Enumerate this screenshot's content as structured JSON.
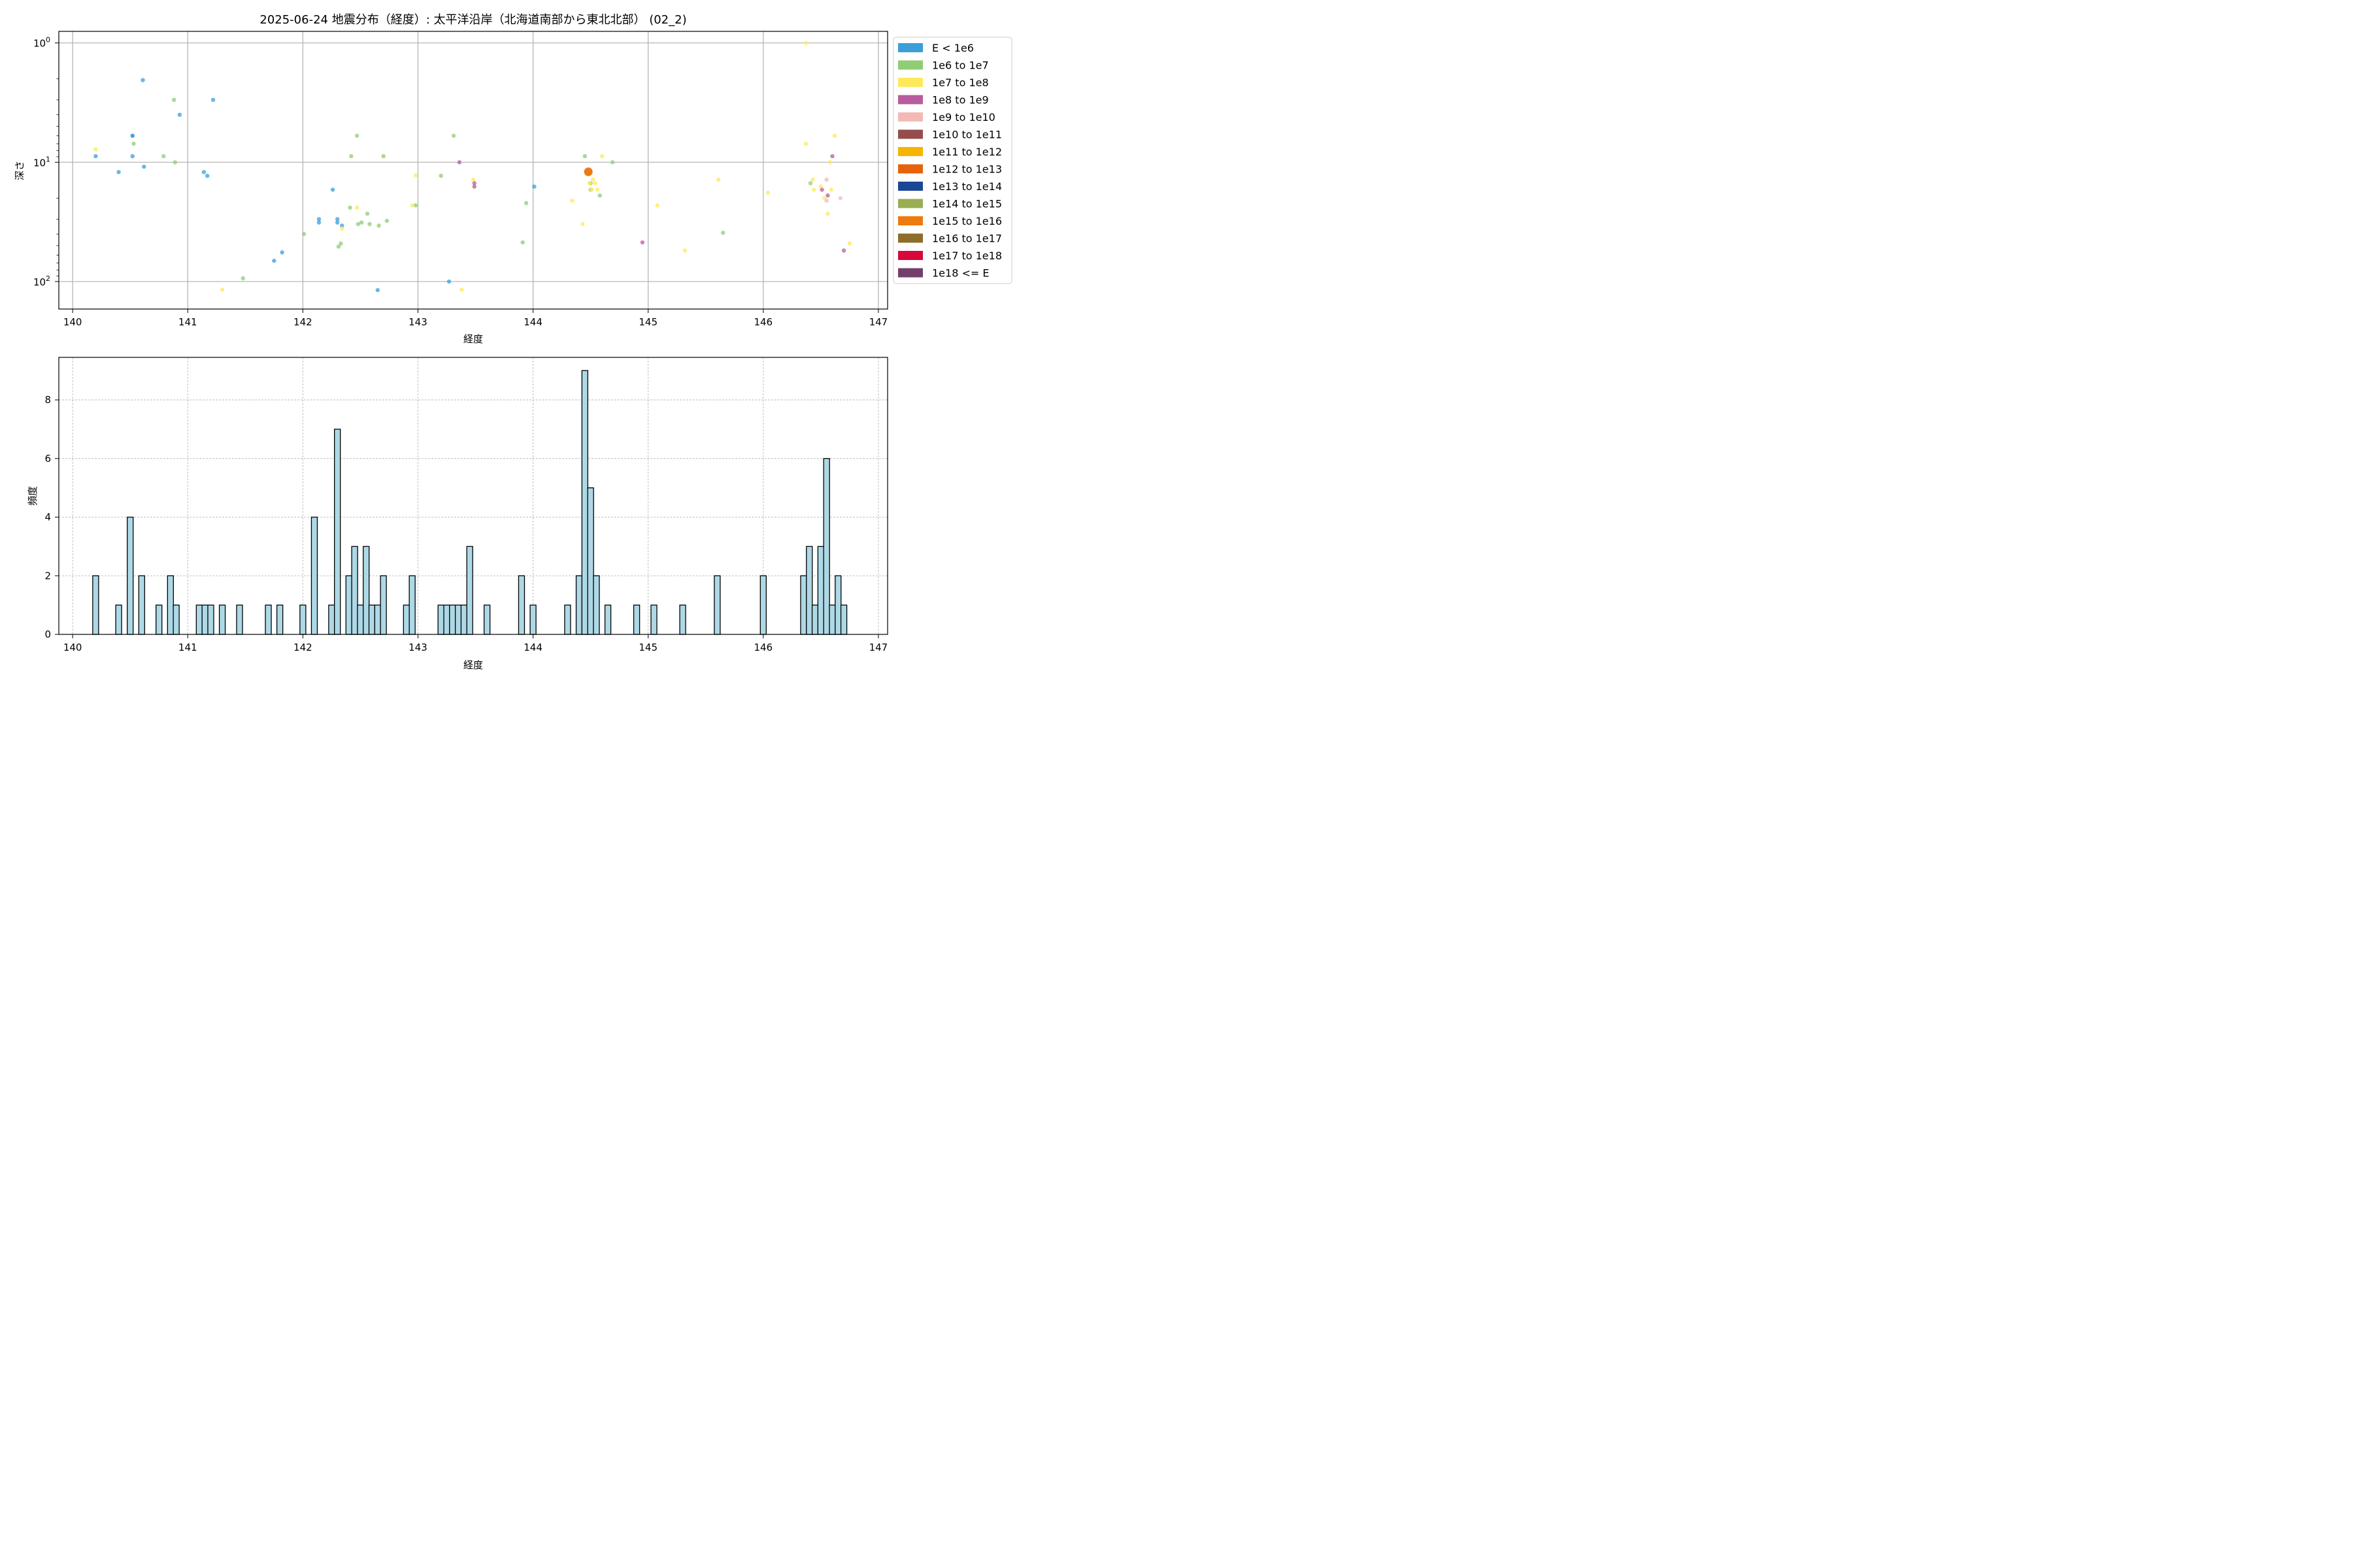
{
  "title": "2025-06-24 地震分布（経度）: 太平洋沿岸（北海道南部から東北北部） (02_2)",
  "chart_data": [
    {
      "type": "scatter",
      "title": "2025-06-24 地震分布（経度）: 太平洋沿岸（北海道南部から東北北部） (02_2)",
      "xlabel": "経度",
      "ylabel": "深さ",
      "xlim": [
        139.88,
        147.08
      ],
      "ylim": [
        170,
        0.8
      ],
      "yscale": "log",
      "y_inverted": true,
      "grid": true,
      "legend_position": "outside-right",
      "x_ticks": [
        140,
        141,
        142,
        143,
        144,
        145,
        146,
        147
      ],
      "y_ticks": [
        {
          "value": 1,
          "base": "10",
          "exp": "0"
        },
        {
          "value": 10,
          "base": "10",
          "exp": "1"
        },
        {
          "value": 100,
          "base": "10",
          "exp": "2"
        }
      ],
      "legend": [
        {
          "label": "E < 1e6",
          "color": "#3a9fd8"
        },
        {
          "label": "1e6 to 1e7",
          "color": "#90cc74"
        },
        {
          "label": "1e7 to 1e8",
          "color": "#fde95a"
        },
        {
          "label": "1e8 to 1e9",
          "color": "#b85c9e"
        },
        {
          "label": "1e9 to 1e10",
          "color": "#f4b9b5"
        },
        {
          "label": "1e10 to 1e11",
          "color": "#944d4a"
        },
        {
          "label": "1e11 to 1e12",
          "color": "#f6b400"
        },
        {
          "label": "1e12 to 1e13",
          "color": "#e8620b"
        },
        {
          "label": "1e13 to 1e14",
          "color": "#1b4896"
        },
        {
          "label": "1e14 to 1e15",
          "color": "#99ad52"
        },
        {
          "label": "1e15 to 1e16",
          "color": "#ef7a0e"
        },
        {
          "label": "1e16 to 1e17",
          "color": "#8e6c2a"
        },
        {
          "label": "1e17 to 1e18",
          "color": "#d9083a"
        },
        {
          "label": "1e18 <= E",
          "color": "#733f6a"
        }
      ],
      "series": [
        {
          "class": "E < 1e6",
          "color": "#3a9fd8",
          "points": [
            [
              140.2,
              8.9
            ],
            [
              140.4,
              12.1
            ],
            [
              140.52,
              6.0
            ],
            [
              140.52,
              6.0
            ],
            [
              140.52,
              8.9
            ],
            [
              140.61,
              2.05
            ],
            [
              140.62,
              10.9
            ],
            [
              140.93,
              4.0
            ],
            [
              141.14,
              12.1
            ],
            [
              141.17,
              13.0
            ],
            [
              141.22,
              3.0
            ],
            [
              141.75,
              67
            ],
            [
              141.82,
              57
            ],
            [
              142.14,
              30
            ],
            [
              142.14,
              32
            ],
            [
              142.26,
              17
            ],
            [
              142.3,
              32
            ],
            [
              142.3,
              30
            ],
            [
              142.34,
              34
            ],
            [
              142.65,
              118
            ],
            [
              143.27,
              100
            ],
            [
              144.01,
              16
            ]
          ]
        },
        {
          "class": "1e6 to 1e7",
          "color": "#90cc74",
          "points": [
            [
              140.79,
              8.9
            ],
            [
              140.88,
              3.0
            ],
            [
              140.89,
              10.0
            ],
            [
              140.53,
              7.0
            ],
            [
              141.48,
              94
            ],
            [
              142.01,
              40
            ],
            [
              142.31,
              51
            ],
            [
              142.33,
              48
            ],
            [
              142.41,
              24
            ],
            [
              142.42,
              8.9
            ],
            [
              142.47,
              6.0
            ],
            [
              142.48,
              33
            ],
            [
              142.51,
              32
            ],
            [
              142.56,
              27
            ],
            [
              142.58,
              33
            ],
            [
              142.66,
              34
            ],
            [
              142.7,
              8.9
            ],
            [
              142.73,
              31
            ],
            [
              142.98,
              23
            ],
            [
              143.2,
              13.0
            ],
            [
              143.31,
              6.0
            ],
            [
              143.91,
              47
            ],
            [
              143.94,
              22
            ],
            [
              144.45,
              8.9
            ],
            [
              144.5,
              15
            ],
            [
              144.5,
              17
            ],
            [
              144.58,
              19
            ],
            [
              144.69,
              10.0
            ],
            [
              145.65,
              39
            ],
            [
              146.41,
              15
            ]
          ]
        },
        {
          "class": "1e7 to 1e8",
          "color": "#fde95a",
          "points": [
            [
              140.2,
              7.8
            ],
            [
              141.3,
              117
            ],
            [
              142.34,
              36
            ],
            [
              142.47,
              24
            ],
            [
              142.95,
              23
            ],
            [
              142.98,
              12.9
            ],
            [
              143.38,
              117
            ],
            [
              143.48,
              14
            ],
            [
              144.34,
              21
            ],
            [
              144.43,
              33
            ],
            [
              144.49,
              12.1
            ],
            [
              144.49,
              15
            ],
            [
              144.52,
              14
            ],
            [
              144.51,
              17
            ],
            [
              144.54,
              15
            ],
            [
              144.56,
              17
            ],
            [
              144.6,
              8.9
            ],
            [
              145.08,
              23
            ],
            [
              145.32,
              55
            ],
            [
              145.61,
              14
            ],
            [
              146.04,
              18
            ],
            [
              146.37,
              1.0
            ],
            [
              146.37,
              7.0
            ],
            [
              146.43,
              14
            ],
            [
              146.44,
              17
            ],
            [
              146.5,
              16
            ],
            [
              146.53,
              20
            ],
            [
              146.56,
              27
            ],
            [
              146.58,
              10.0
            ],
            [
              146.59,
              17
            ],
            [
              146.62,
              6.0
            ],
            [
              146.75,
              48
            ]
          ]
        },
        {
          "class": "1e8 to 1e9",
          "color": "#b85c9e",
          "points": [
            [
              143.36,
              10.0
            ],
            [
              143.49,
              15
            ],
            [
              143.49,
              16
            ],
            [
              144.95,
              47
            ],
            [
              146.51,
              17
            ],
            [
              146.56,
              19
            ],
            [
              146.6,
              8.9
            ],
            [
              146.7,
              55
            ]
          ]
        },
        {
          "class": "1e9 to 1e10",
          "color": "#f4b9b5",
          "points": [
            [
              146.55,
              14
            ],
            [
              146.55,
              21
            ],
            [
              146.67,
              20
            ]
          ]
        },
        {
          "class": "1e11 to 1e12",
          "color": "#f6b400",
          "points": [
            [
              144.48,
              12.1
            ]
          ]
        },
        {
          "class": "1e12 to 1e13",
          "color": "#e8620b",
          "points": [
            [
              144.48,
              12.0
            ]
          ]
        }
      ]
    },
    {
      "type": "bar",
      "xlabel": "経度",
      "ylabel": "頻度",
      "xlim": [
        139.88,
        147.08
      ],
      "ylim": [
        0,
        9.45
      ],
      "grid": true,
      "x_ticks": [
        140,
        141,
        142,
        143,
        144,
        145,
        146,
        147
      ],
      "y_ticks": [
        0,
        2,
        4,
        6,
        8
      ],
      "bar_color": "#add8e6",
      "edge_color": "#000000",
      "bin_width": 0.0512,
      "bins": [
        [
          140.2,
          2
        ],
        [
          140.4,
          1
        ],
        [
          140.5,
          4
        ],
        [
          140.6,
          2
        ],
        [
          140.75,
          1
        ],
        [
          140.85,
          2
        ],
        [
          140.9,
          1
        ],
        [
          141.1,
          1
        ],
        [
          141.15,
          1
        ],
        [
          141.2,
          1
        ],
        [
          141.3,
          1
        ],
        [
          141.45,
          1
        ],
        [
          141.7,
          1
        ],
        [
          141.8,
          1
        ],
        [
          142.0,
          1
        ],
        [
          142.1,
          4
        ],
        [
          142.25,
          1
        ],
        [
          142.3,
          7
        ],
        [
          142.4,
          2
        ],
        [
          142.45,
          3
        ],
        [
          142.5,
          1
        ],
        [
          142.55,
          3
        ],
        [
          142.6,
          1
        ],
        [
          142.65,
          1
        ],
        [
          142.7,
          2
        ],
        [
          142.9,
          1
        ],
        [
          142.95,
          2
        ],
        [
          143.2,
          1
        ],
        [
          143.25,
          1
        ],
        [
          143.3,
          1
        ],
        [
          143.35,
          1
        ],
        [
          143.4,
          1
        ],
        [
          143.45,
          3
        ],
        [
          143.6,
          1
        ],
        [
          143.9,
          2
        ],
        [
          144.0,
          1
        ],
        [
          144.3,
          1
        ],
        [
          144.4,
          2
        ],
        [
          144.45,
          9
        ],
        [
          144.5,
          5
        ],
        [
          144.55,
          2
        ],
        [
          144.65,
          1
        ],
        [
          144.9,
          1
        ],
        [
          145.05,
          1
        ],
        [
          145.3,
          1
        ],
        [
          145.6,
          2
        ],
        [
          146.0,
          2
        ],
        [
          146.35,
          2
        ],
        [
          146.4,
          3
        ],
        [
          146.45,
          1
        ],
        [
          146.5,
          3
        ],
        [
          146.55,
          6
        ],
        [
          146.6,
          1
        ],
        [
          146.65,
          2
        ],
        [
          146.7,
          1
        ]
      ]
    }
  ]
}
